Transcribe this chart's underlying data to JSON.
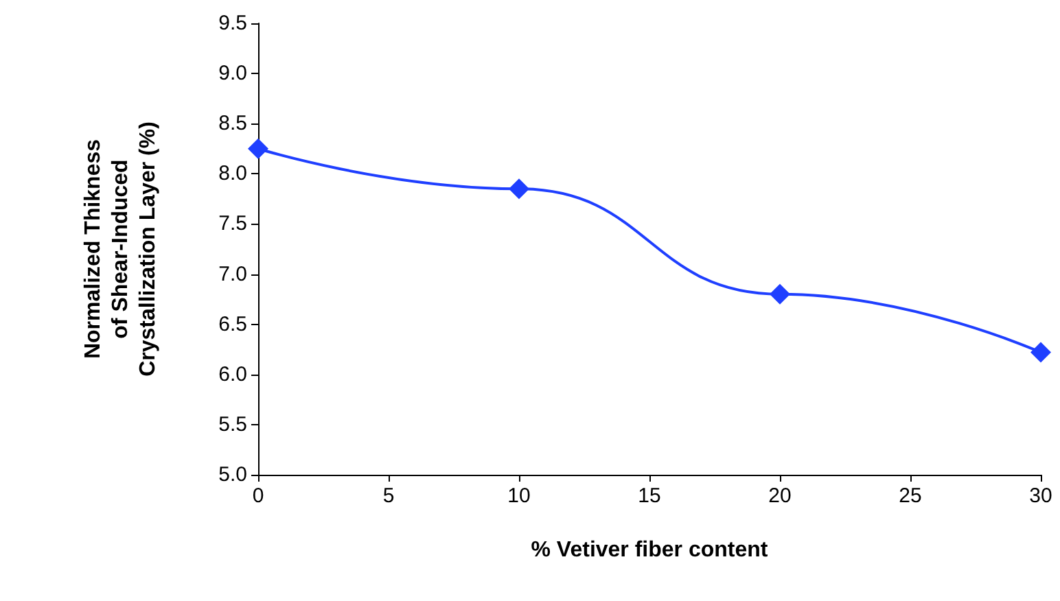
{
  "chart_data": {
    "type": "line",
    "xlabel": "% Vetiver fiber content",
    "ylabel": "Normalized Thikness\nof Shear-Induced\nCrystallization Layer (%)",
    "x": [
      0,
      10,
      20,
      30
    ],
    "series": [
      {
        "color": "#1f3fff",
        "values": [
          8.25,
          7.85,
          6.8,
          6.22
        ]
      }
    ],
    "xlim": [
      0,
      30
    ],
    "xticks": [
      0,
      5,
      10,
      15,
      20,
      25,
      30
    ],
    "ylim": [
      5,
      9.5
    ],
    "yticks": [
      {
        "value": 5,
        "label": "5.0"
      },
      {
        "value": 5.5,
        "label": "5.5"
      },
      {
        "value": 6,
        "label": "6.0"
      },
      {
        "value": 6.5,
        "label": "6.5"
      },
      {
        "value": 7,
        "label": "7.0"
      },
      {
        "value": 7.5,
        "label": "7.5"
      },
      {
        "value": 8,
        "label": "8.0"
      },
      {
        "value": 8.5,
        "label": "8.5"
      },
      {
        "value": 9,
        "label": "9.0"
      },
      {
        "value": 9.5,
        "label": "9.5"
      }
    ],
    "grid": false,
    "marker": "diamond",
    "line_style": "solid"
  }
}
